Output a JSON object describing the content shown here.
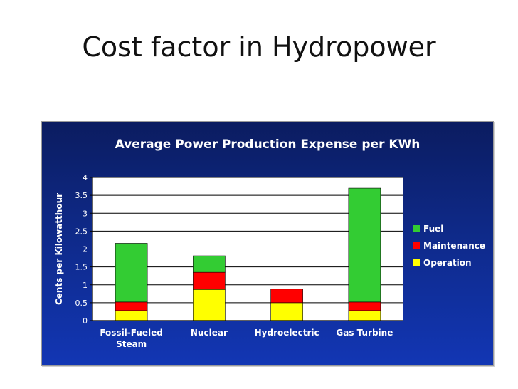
{
  "slide": {
    "title": "Cost factor in Hydropower"
  },
  "chart_data": {
    "type": "bar",
    "stacked": true,
    "title": "Average Power Production Expense per KWh",
    "xlabel": "",
    "ylabel": "Cents per Kilowatthour",
    "ylim": [
      0,
      4
    ],
    "yticks": [
      "0",
      "0.5",
      "1",
      "1.5",
      "2",
      "2.5",
      "3",
      "3.5",
      "4"
    ],
    "grid": true,
    "legend_position": "right",
    "categories": [
      [
        "Fossil-Fueled",
        "Steam"
      ],
      [
        "Nuclear"
      ],
      [
        "Hydroelectric"
      ],
      [
        "Gas Turbine"
      ]
    ],
    "series": [
      {
        "name": "Operation",
        "color": "#ffff00",
        "values": [
          0.28,
          0.87,
          0.5,
          0.28
        ]
      },
      {
        "name": "Maintenance",
        "color": "#ff0000",
        "values": [
          0.24,
          0.48,
          0.38,
          0.24
        ]
      },
      {
        "name": "Fuel",
        "color": "#33cc33",
        "values": [
          1.64,
          0.46,
          0.0,
          3.18
        ]
      }
    ],
    "legend_order": [
      "Fuel",
      "Maintenance",
      "Operation"
    ],
    "colors": {
      "background_top": "#0b1c60",
      "background_bottom": "#1236b4",
      "plot_bg": "#ffffff",
      "text": "#ffffff",
      "axis": "#000000"
    }
  }
}
